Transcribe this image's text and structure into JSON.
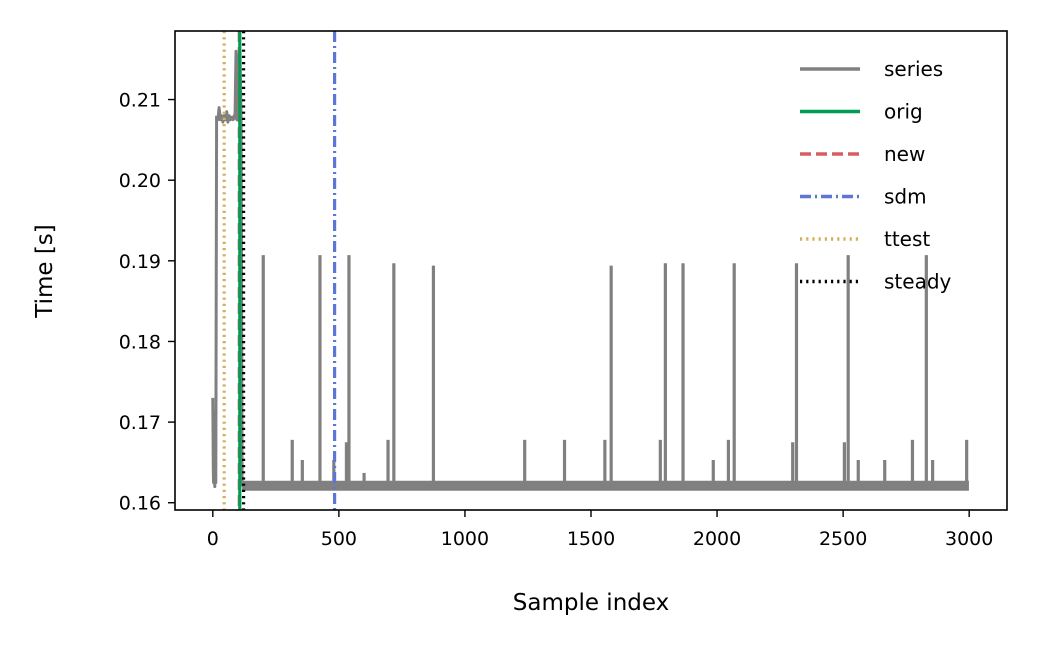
{
  "chart_data": {
    "type": "line",
    "title": "",
    "xlabel": "Sample index",
    "ylabel": "Time [s]",
    "xlim": [
      -150,
      3150
    ],
    "ylim": [
      0.1591,
      0.2185
    ],
    "xticks": [
      0,
      500,
      1000,
      1500,
      2000,
      2500,
      3000
    ],
    "xtick_labels": [
      "0",
      "500",
      "1000",
      "1500",
      "2000",
      "2500",
      "3000"
    ],
    "yticks": [
      0.16,
      0.17,
      0.18,
      0.19,
      0.2,
      0.21
    ],
    "ytick_labels": [
      "0.16",
      "0.17",
      "0.18",
      "0.19",
      "0.20",
      "0.21"
    ],
    "grid": false,
    "legend_position": "upper right",
    "series": [
      {
        "name": "series",
        "color": "#808080",
        "style": "solid",
        "baseline": 0.1621,
        "x_range": [
          0,
          2999
        ],
        "segments": [
          {
            "x": [
              0,
              2,
              3,
              5,
              8,
              10,
              12,
              15
            ],
            "y": [
              0.173,
              0.164,
              0.1625,
              0.171,
              0.162,
              0.166,
              0.1625,
              0.208
            ]
          },
          {
            "x": [
              15,
              20,
              25,
              30,
              35,
              40,
              45,
              50,
              55,
              60,
              65,
              70,
              75,
              80,
              85,
              88
            ],
            "y": [
              0.208,
              0.2075,
              0.209,
              0.2075,
              0.208,
              0.2072,
              0.208,
              0.2075,
              0.2085,
              0.2072,
              0.208,
              0.2075,
              0.2078,
              0.2075,
              0.208,
              0.2075
            ]
          },
          {
            "x": [
              88,
              92,
              96,
              100,
              104,
              108,
              112,
              116
            ],
            "y": [
              0.2075,
              0.216,
              0.2075,
              0.2155,
              0.2075,
              0.216,
              0.2075,
              0.162
            ]
          }
        ],
        "spikes": [
          {
            "x": 200,
            "y": 0.1907
          },
          {
            "x": 315,
            "y": 0.1678
          },
          {
            "x": 355,
            "y": 0.1653
          },
          {
            "x": 425,
            "y": 0.1907
          },
          {
            "x": 480,
            "y": 0.1653
          },
          {
            "x": 530,
            "y": 0.1675
          },
          {
            "x": 540,
            "y": 0.1907
          },
          {
            "x": 600,
            "y": 0.1637
          },
          {
            "x": 695,
            "y": 0.1678
          },
          {
            "x": 718,
            "y": 0.1897
          },
          {
            "x": 875,
            "y": 0.1894
          },
          {
            "x": 1237,
            "y": 0.1678
          },
          {
            "x": 1395,
            "y": 0.1678
          },
          {
            "x": 1555,
            "y": 0.1678
          },
          {
            "x": 1580,
            "y": 0.1894
          },
          {
            "x": 1775,
            "y": 0.1678
          },
          {
            "x": 1795,
            "y": 0.1897
          },
          {
            "x": 1865,
            "y": 0.1897
          },
          {
            "x": 1985,
            "y": 0.1653
          },
          {
            "x": 2045,
            "y": 0.1678
          },
          {
            "x": 2068,
            "y": 0.1897
          },
          {
            "x": 2300,
            "y": 0.1675
          },
          {
            "x": 2315,
            "y": 0.1897
          },
          {
            "x": 2505,
            "y": 0.1675
          },
          {
            "x": 2520,
            "y": 0.1907
          },
          {
            "x": 2560,
            "y": 0.1653
          },
          {
            "x": 2665,
            "y": 0.1653
          },
          {
            "x": 2775,
            "y": 0.1678
          },
          {
            "x": 2830,
            "y": 0.1907
          },
          {
            "x": 2855,
            "y": 0.1653
          },
          {
            "x": 2990,
            "y": 0.1678
          }
        ]
      },
      {
        "name": "orig",
        "color": "#009e55",
        "style": "solid",
        "vline_x": 107
      },
      {
        "name": "new",
        "color": "#d65f5f",
        "style": "dashed",
        "vline_x": 105
      },
      {
        "name": "sdm",
        "color": "#5b76d6",
        "style": "dashdot",
        "vline_x": 483
      },
      {
        "name": "ttest",
        "color": "#d5af5c",
        "style": "dotted",
        "vline_x": 45
      },
      {
        "name": "steady",
        "color": "#000000",
        "style": "dotted",
        "vline_x": 122
      }
    ]
  }
}
